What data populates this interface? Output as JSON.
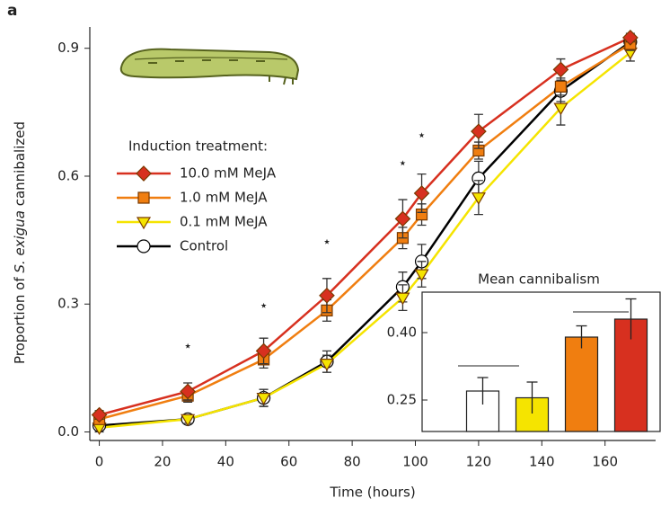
{
  "panel_label": "a",
  "chart_data": [
    {
      "type": "line",
      "xlabel": "Time (hours)",
      "ylabel_parts": [
        "Proportion of ",
        "S. exigua",
        " cannibalized"
      ],
      "legend_title": "Induction treatment:",
      "x": [
        0,
        28,
        52,
        72,
        96,
        102,
        120,
        146,
        168
      ],
      "xlim": [
        -3,
        176
      ],
      "ylim": [
        -0.02,
        0.95
      ],
      "xticks": [
        0,
        20,
        40,
        60,
        80,
        100,
        120,
        140,
        160
      ],
      "yticks": [
        {
          "value": 0,
          "label": "0.0"
        },
        0.3,
        0.6,
        0.9
      ],
      "series": [
        {
          "name": "10.0 mM MeJA",
          "color": "#d7301f",
          "marker": "diamond",
          "values": [
            0.04,
            0.095,
            0.19,
            0.32,
            0.5,
            0.56,
            0.705,
            0.85,
            0.925
          ],
          "errors": [
            0.01,
            0.02,
            0.03,
            0.04,
            0.045,
            0.045,
            0.04,
            0.025,
            0.01
          ]
        },
        {
          "name": "1.0 mM MeJA",
          "color": "#f07e10",
          "marker": "square",
          "values": [
            0.03,
            0.085,
            0.17,
            0.285,
            0.455,
            0.51,
            0.66,
            0.81,
            0.91
          ],
          "errors": [
            0.01,
            0.015,
            0.02,
            0.025,
            0.025,
            0.025,
            0.02,
            0.02,
            0.015
          ]
        },
        {
          "name": "0.1 mM MeJA",
          "color": "#f5e400",
          "marker": "triangle",
          "values": [
            0.01,
            0.03,
            0.08,
            0.16,
            0.315,
            0.37,
            0.55,
            0.76,
            0.89
          ],
          "errors": [
            0.01,
            0.01,
            0.02,
            0.02,
            0.03,
            0.03,
            0.04,
            0.04,
            0.02
          ]
        },
        {
          "name": "Control",
          "color": "#000000",
          "marker": "circle",
          "values": [
            0.015,
            0.03,
            0.08,
            0.165,
            0.34,
            0.4,
            0.595,
            0.8,
            0.915
          ],
          "errors": [
            0.01,
            0.01,
            0.02,
            0.025,
            0.035,
            0.04,
            0.04,
            0.025,
            0.015
          ]
        }
      ],
      "annotations": [
        {
          "text": "⋆",
          "x": 28,
          "y": 0.2
        },
        {
          "text": "⋆",
          "x": 52,
          "y": 0.295
        },
        {
          "text": "⋆",
          "x": 72,
          "y": 0.445
        },
        {
          "text": "⋆",
          "x": 96,
          "y": 0.63
        },
        {
          "text": "⋆",
          "x": 102,
          "y": 0.695
        }
      ]
    },
    {
      "type": "bar",
      "title": "Mean cannibalism",
      "categories": [
        null,
        null,
        null,
        null
      ],
      "values": [
        0.27,
        0.255,
        0.39,
        0.43
      ],
      "errors": [
        0.03,
        0.035,
        0.025,
        0.045
      ],
      "colors": [
        "#ffffff",
        "#f5e400",
        "#f07e10",
        "#d7301f"
      ],
      "ylim": [
        0.18,
        0.49
      ],
      "yticks": [
        0.25,
        {
          "value": 0.4,
          "label": "0.40"
        }
      ]
    }
  ]
}
